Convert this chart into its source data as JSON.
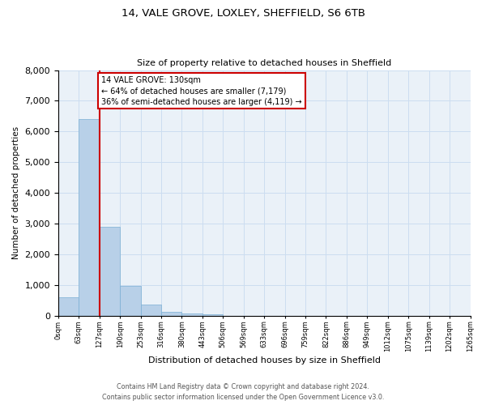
{
  "title1": "14, VALE GROVE, LOXLEY, SHEFFIELD, S6 6TB",
  "title2": "Size of property relative to detached houses in Sheffield",
  "xlabel": "Distribution of detached houses by size in Sheffield",
  "ylabel": "Number of detached properties",
  "footer1": "Contains HM Land Registry data © Crown copyright and database right 2024.",
  "footer2": "Contains public sector information licensed under the Open Government Licence v3.0.",
  "annotation_title": "14 VALE GROVE: 130sqm",
  "annotation_line1": "← 64% of detached houses are smaller (7,179)",
  "annotation_line2": "36% of semi-detached houses are larger (4,119) →",
  "property_size": 130,
  "bin_edges": [
    0,
    63,
    127,
    190,
    253,
    316,
    380,
    443,
    506,
    569,
    633,
    696,
    759,
    822,
    886,
    949,
    1012,
    1075,
    1139,
    1202,
    1265
  ],
  "bar_heights": [
    600,
    6400,
    2900,
    960,
    360,
    140,
    70,
    40,
    0,
    0,
    0,
    0,
    0,
    0,
    0,
    0,
    0,
    0,
    0,
    0
  ],
  "bar_color": "#b8d0e8",
  "bar_edge_color": "#7aafd4",
  "vline_color": "#cc0000",
  "vline_x": 127,
  "annotation_box_edge": "#cc0000",
  "grid_color": "#ccddf0",
  "background_color": "#eaf1f8",
  "ylim": [
    0,
    8000
  ],
  "yticks": [
    0,
    1000,
    2000,
    3000,
    4000,
    5000,
    6000,
    7000,
    8000
  ],
  "tick_labels": [
    "0sqm",
    "63sqm",
    "127sqm",
    "190sqm",
    "253sqm",
    "316sqm",
    "380sqm",
    "443sqm",
    "506sqm",
    "569sqm",
    "633sqm",
    "696sqm",
    "759sqm",
    "822sqm",
    "886sqm",
    "949sqm",
    "1012sqm",
    "1075sqm",
    "1139sqm",
    "1202sqm",
    "1265sqm"
  ]
}
